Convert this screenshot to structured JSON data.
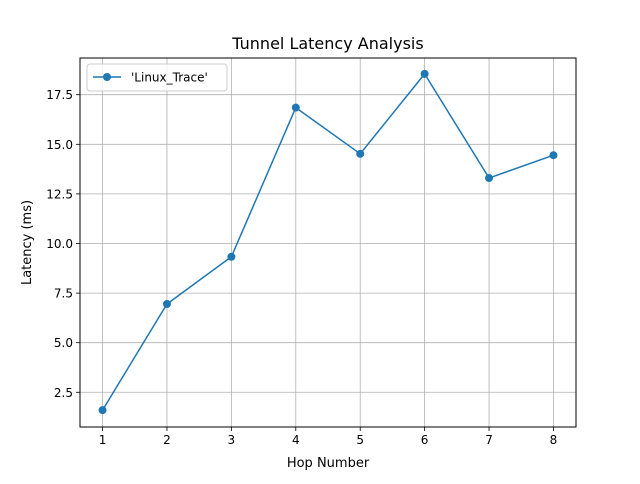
{
  "chart_data": {
    "type": "line",
    "title": "Tunnel Latency Analysis",
    "xlabel": "Hop Number",
    "ylabel": "Latency (ms)",
    "xlim": [
      0.65,
      8.35
    ],
    "ylim": [
      0.75,
      19.35
    ],
    "xticks": [
      1,
      2,
      3,
      4,
      5,
      6,
      7,
      8
    ],
    "xtick_labels": [
      "1",
      "2",
      "3",
      "4",
      "5",
      "6",
      "7",
      "8"
    ],
    "yticks": [
      2.5,
      5.0,
      7.5,
      10.0,
      12.5,
      15.0,
      17.5
    ],
    "ytick_labels": [
      "2.5",
      "5.0",
      "7.5",
      "10.0",
      "12.5",
      "15.0",
      "17.5"
    ],
    "grid": true,
    "legend_position": "upper-left",
    "series": [
      {
        "name": "'Linux_Trace'",
        "color": "#1f77b4",
        "marker": "circle",
        "x": [
          1,
          2,
          3,
          4,
          5,
          6,
          7,
          8
        ],
        "y": [
          1.6,
          6.95,
          9.33,
          16.85,
          14.52,
          18.55,
          13.3,
          14.45
        ]
      }
    ]
  }
}
